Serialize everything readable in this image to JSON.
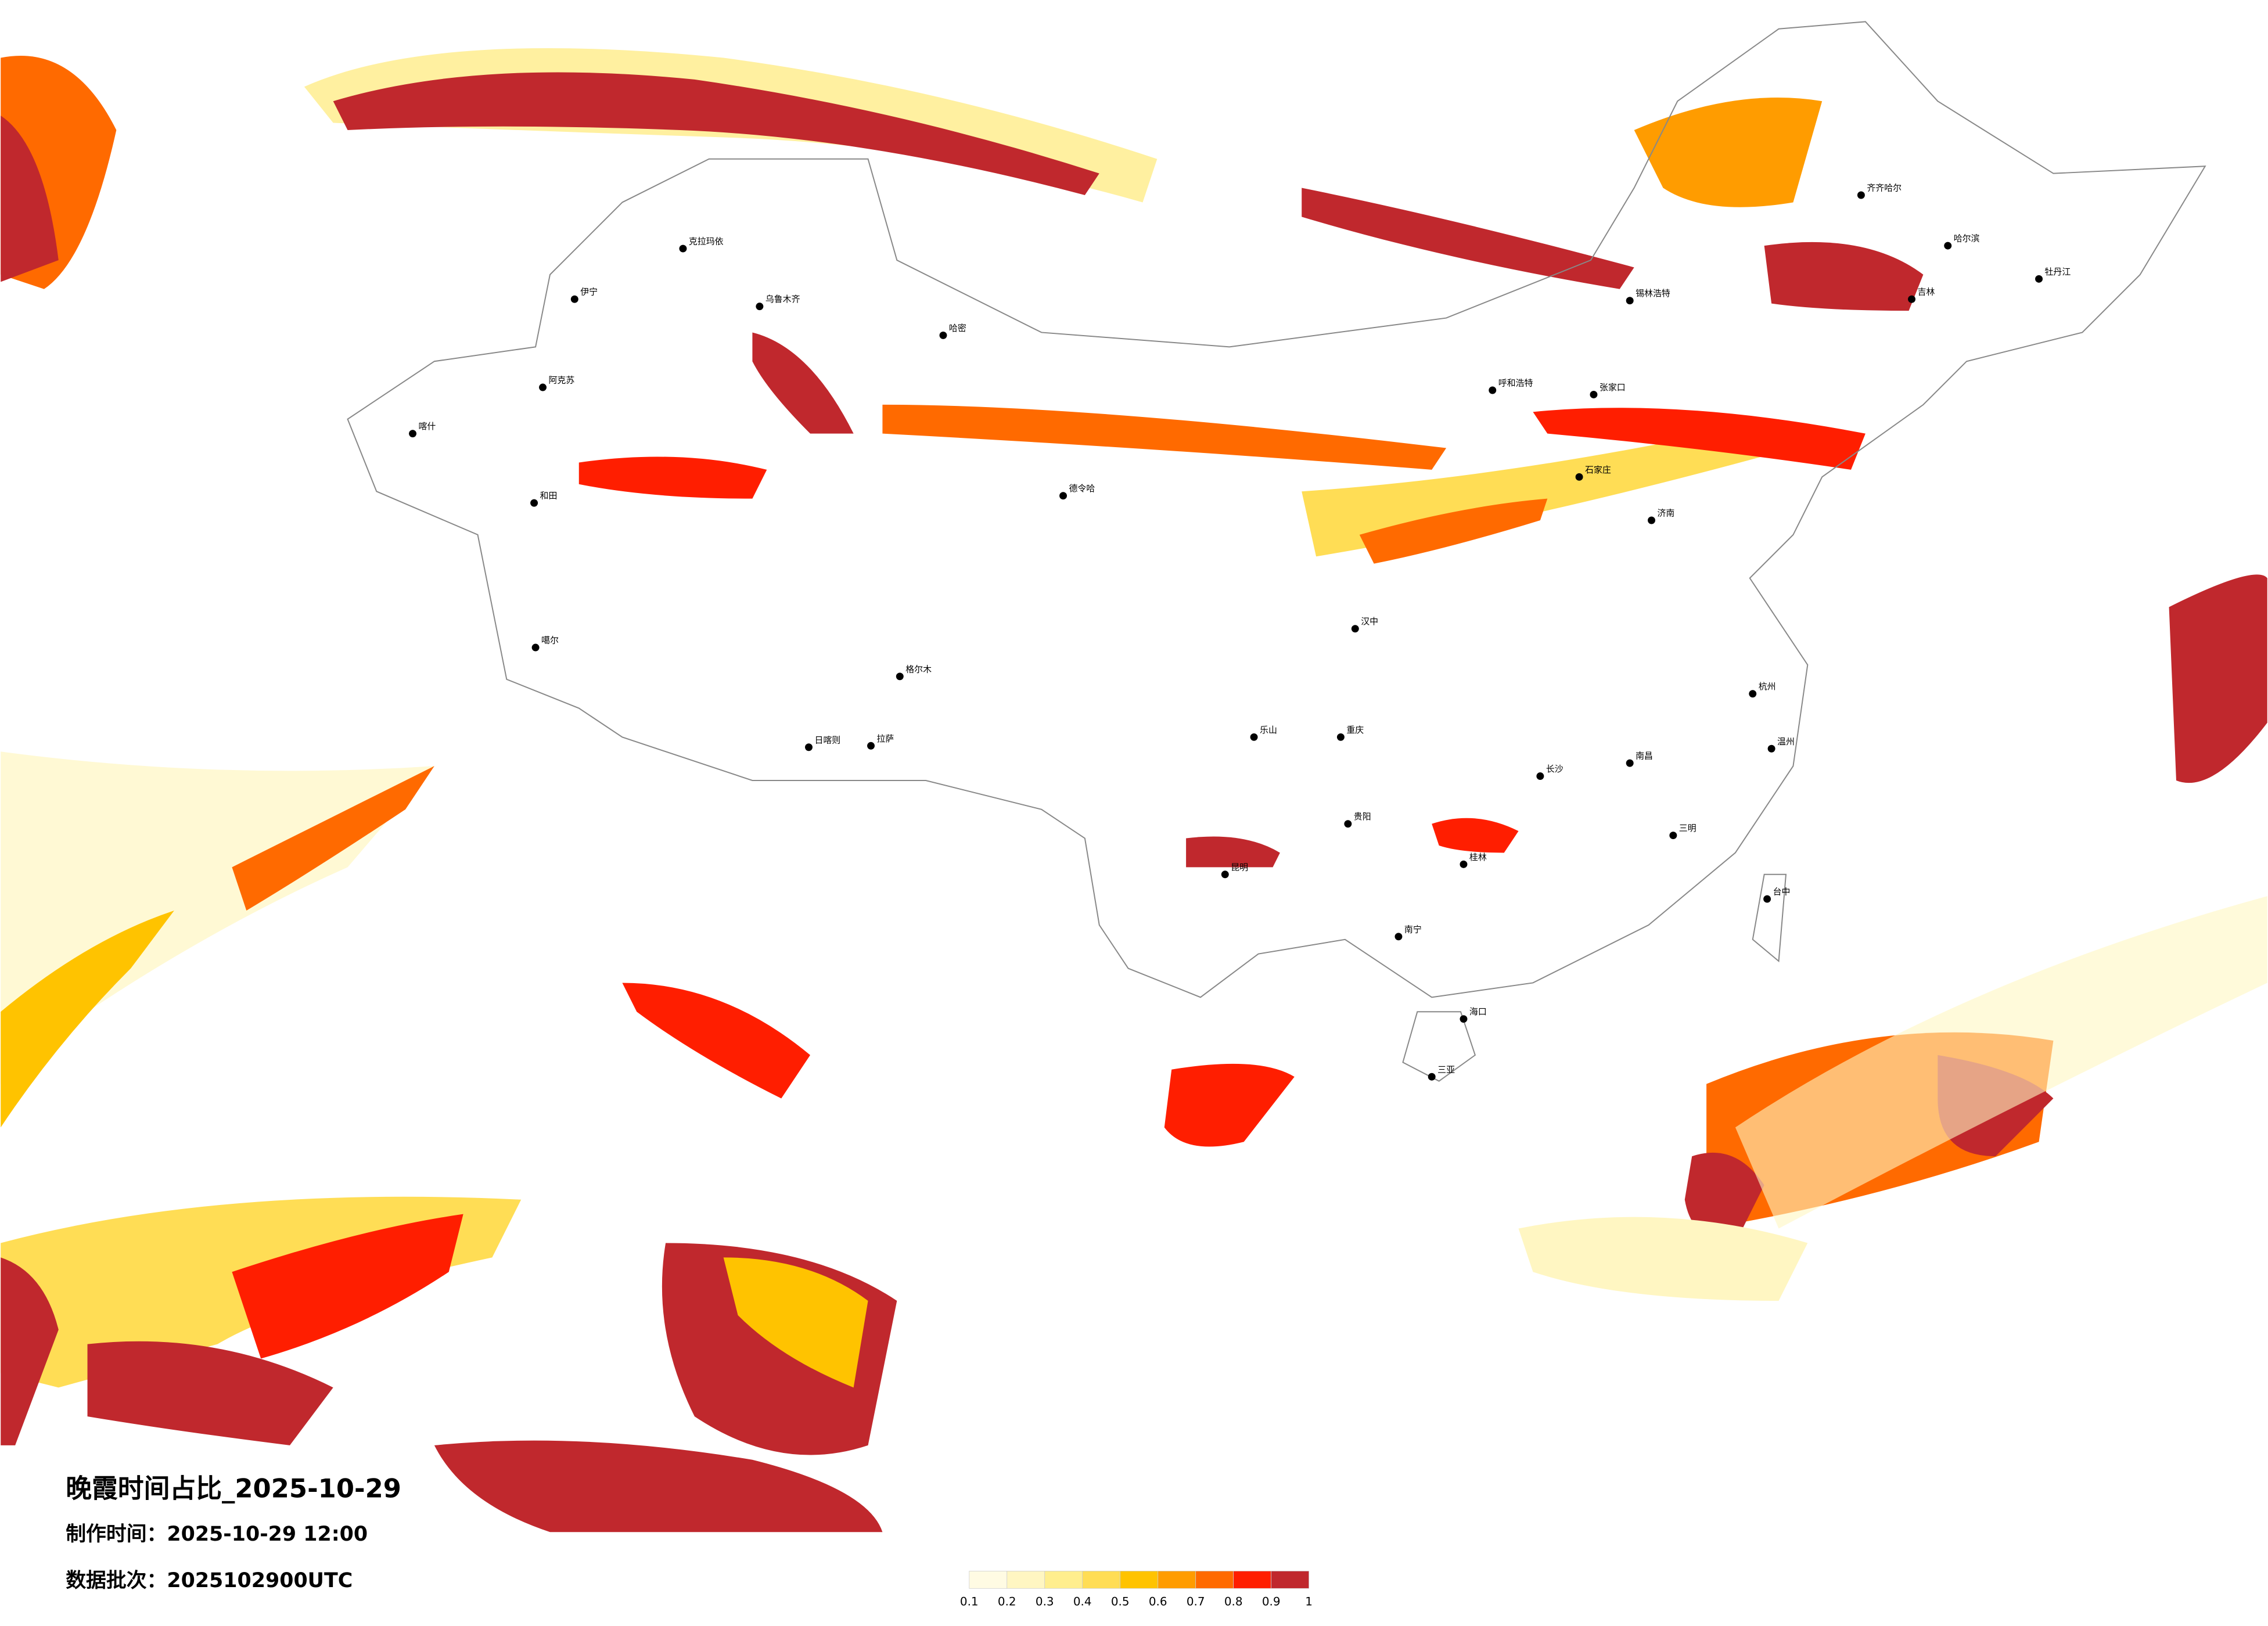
{
  "title": "晚霞时间占比_2025-10-29",
  "made_time": "制作时间：2025-10-29 12:00",
  "batch": "数据批次：2025102900UTC",
  "colorbar": {
    "ticks": [
      0.1,
      0.2,
      0.3,
      0.4,
      0.5,
      0.6,
      0.7,
      0.8,
      0.9,
      1
    ],
    "colors": [
      "#fffbe3",
      "#fff6c2",
      "#ffee8e",
      "#ffdd55",
      "#ffc300",
      "#ff9c00",
      "#ff6a00",
      "#ff1e00",
      "#c0282d"
    ]
  },
  "cities": [
    "克拉玛依",
    "伊宁",
    "乌鲁木齐",
    "哈密",
    "阿克苏",
    "喀什",
    "和田",
    "噶尔",
    "格尔木",
    "日喀则",
    "拉萨",
    "德令哈",
    "呼和浩特",
    "锡林浩特",
    "齐齐哈尔",
    "哈尔滨",
    "吉林",
    "牡丹江",
    "张家口",
    "石家庄",
    "济南",
    "汉中",
    "乐山",
    "重庆",
    "贵阳",
    "昆明",
    "南宁",
    "桂林",
    "长沙",
    "南昌",
    "三明",
    "台中",
    "海口",
    "三亚",
    "温州",
    "杭州"
  ]
}
